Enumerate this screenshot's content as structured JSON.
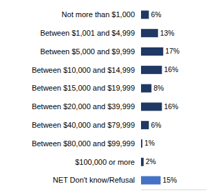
{
  "chart_data": {
    "type": "bar",
    "orientation": "horizontal",
    "categories": [
      "Not more than $1,000",
      "Between $1,001 and $4,999",
      "Between $5,000 and $9,999",
      "Between $10,000 and $14,999",
      "Between $15,000 and $19,999",
      "Between $20,000 and $39,999",
      "Between $40,000 and $79,999",
      "Between $80,000 and $99,999",
      "$100,000 or more",
      "NET Don't know/Refusal"
    ],
    "values": [
      6,
      13,
      17,
      16,
      8,
      16,
      6,
      1,
      2,
      15
    ],
    "value_labels": [
      "6%",
      "13%",
      "17%",
      "16%",
      "8%",
      "16%",
      "6%",
      "1%",
      "2%",
      "15%"
    ],
    "colors": [
      "#1f3864",
      "#1f3864",
      "#1f3864",
      "#1f3864",
      "#1f3864",
      "#1f3864",
      "#1f3864",
      "#1f3864",
      "#1f3864",
      "#4472c4"
    ],
    "xlim": [
      0,
      50
    ],
    "data_labels": true,
    "tick_labels": "y",
    "grid": false
  }
}
